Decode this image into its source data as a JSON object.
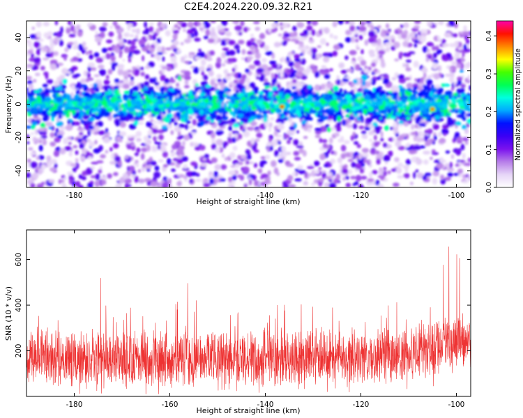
{
  "title": "C2E4.2024.220.09.32.R21",
  "colors": {
    "snr_line": "#ee3333",
    "frame": "#000000",
    "colormap": [
      "#ffffff",
      "#e6d5f7",
      "#b77ee9",
      "#7a12ee",
      "#3a00f5",
      "#0011ff",
      "#00aaff",
      "#00ffe0",
      "#00ff55",
      "#44ff00",
      "#ffff00",
      "#ff8800",
      "#ff1100",
      "#ff00aa"
    ]
  },
  "chart_data": [
    {
      "type": "heatmap",
      "xlabel": "Height of straight line (km)",
      "ylabel": "Frequency (Hz)",
      "xlim": [
        -190,
        -97
      ],
      "ylim": [
        -50,
        50
      ],
      "x_ticks": [
        -180,
        -160,
        -140,
        -120,
        -100
      ],
      "y_ticks": [
        -40,
        -20,
        0,
        20,
        40
      ],
      "colorbar": {
        "label": "Normalized spectral amplitude",
        "range": [
          0,
          0.44
        ],
        "ticks": [
          "0.0",
          "0.1",
          "0.2",
          "0.3",
          "0.4"
        ],
        "tick_values": [
          0.0,
          0.1,
          0.2,
          0.3,
          0.4
        ]
      },
      "band": {
        "center_hz": 0,
        "half_width_hz": 10,
        "peak_amplitude": 0.44
      },
      "hotspots": [
        {
          "x": -136.5,
          "y": -1.5,
          "value": 0.4
        },
        {
          "x": -105,
          "y": -3,
          "value": 0.38
        },
        {
          "x": -178,
          "y": 0,
          "value": 0.25
        },
        {
          "x": -104,
          "y": -8,
          "value": 0.22
        }
      ]
    },
    {
      "type": "line",
      "xlabel": "Height of straight line (km)",
      "ylabel": "SNR (10 * v/v)",
      "xlim": [
        -190,
        -97
      ],
      "ylim": [
        0,
        730
      ],
      "x_ticks": [
        -180,
        -160,
        -140,
        -120,
        -100
      ],
      "y_ticks": [
        200,
        400,
        600
      ],
      "series": [
        {
          "x": [
            -190,
            -185,
            -180,
            -175,
            -170,
            -165,
            -160,
            -155,
            -150,
            -145,
            -140,
            -135,
            -130,
            -125,
            -120,
            -115,
            -110,
            -105,
            -100,
            -97
          ],
          "values": [
            170,
            165,
            160,
            165,
            170,
            160,
            165,
            170,
            160,
            165,
            160,
            160,
            165,
            170,
            170,
            175,
            185,
            215,
            235,
            245
          ],
          "peaks": [
            420,
            410,
            450,
            540,
            420,
            400,
            420,
            530,
            410,
            400,
            420,
            420,
            430,
            480,
            420,
            450,
            500,
            680,
            730,
            500
          ]
        }
      ]
    }
  ]
}
